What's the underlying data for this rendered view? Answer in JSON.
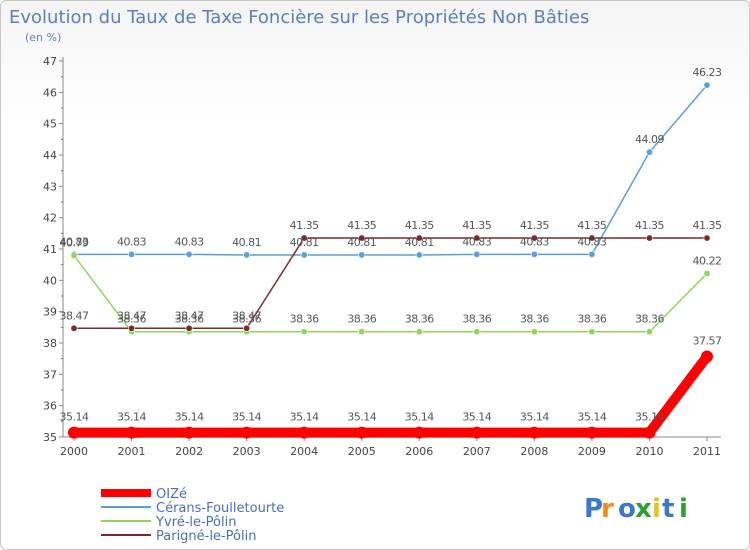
{
  "chart_data": {
    "type": "line",
    "title": "Evolution du Taux de Taxe Foncière sur les Propriétés Non Bâties",
    "subtitle": "(en %)",
    "xlabel": "",
    "ylabel": "",
    "categories": [
      "2000",
      "2001",
      "2002",
      "2003",
      "2004",
      "2005",
      "2006",
      "2007",
      "2008",
      "2009",
      "2010",
      "2011"
    ],
    "ylim": [
      35,
      47
    ],
    "yticks": [
      35,
      36,
      37,
      38,
      39,
      40,
      41,
      42,
      43,
      44,
      45,
      46,
      47
    ],
    "grid": false,
    "legend_position": "bottom-left",
    "series": [
      {
        "name": "OIZé",
        "color": "#ff0000",
        "values": [
          35.14,
          35.14,
          35.14,
          35.14,
          35.14,
          35.14,
          35.14,
          35.14,
          35.14,
          35.14,
          35.14,
          37.57
        ],
        "labels": [
          "35.14",
          "35.14",
          "35.14",
          "35.14",
          "35.14",
          "35.14",
          "35.14",
          "35.14",
          "35.14",
          "35.14",
          "35.14",
          "37.57"
        ]
      },
      {
        "name": "Cérans-Foulletourte",
        "color": "#5c9ed6",
        "values": [
          40.83,
          40.83,
          40.83,
          40.81,
          40.81,
          40.81,
          40.81,
          40.83,
          40.83,
          40.83,
          44.09,
          46.23
        ],
        "labels": [
          "40.83",
          "40.83",
          "40.83",
          "40.81",
          "40.81",
          "40.81",
          "40.81",
          "40.83",
          "40.83",
          "40.83",
          "44.09",
          "46.23"
        ]
      },
      {
        "name": "Yvré-le-Pôlin",
        "color": "#8fd65a",
        "values": [
          40.79,
          38.36,
          38.36,
          38.36,
          38.36,
          38.36,
          38.36,
          38.36,
          38.36,
          38.36,
          38.36,
          40.22
        ],
        "labels": [
          "40.79",
          "38.36",
          "38.36",
          "38.36",
          "38.36",
          "38.36",
          "38.36",
          "38.36",
          "38.36",
          "38.36",
          "38.36",
          "40.22"
        ]
      },
      {
        "name": "Parigné-le-Pôlin",
        "color": "#7a2a2a",
        "values": [
          38.47,
          38.47,
          38.47,
          38.47,
          41.35,
          41.35,
          41.35,
          41.35,
          41.35,
          41.35,
          41.35,
          41.35
        ],
        "labels": [
          "38.47",
          "38.47",
          "38.47",
          "38.47",
          "41.35",
          "41.35",
          "41.35",
          "41.35",
          "41.35",
          "41.35",
          "41.35",
          "41.35"
        ]
      }
    ]
  },
  "logo": {
    "text": "Proxiti"
  }
}
